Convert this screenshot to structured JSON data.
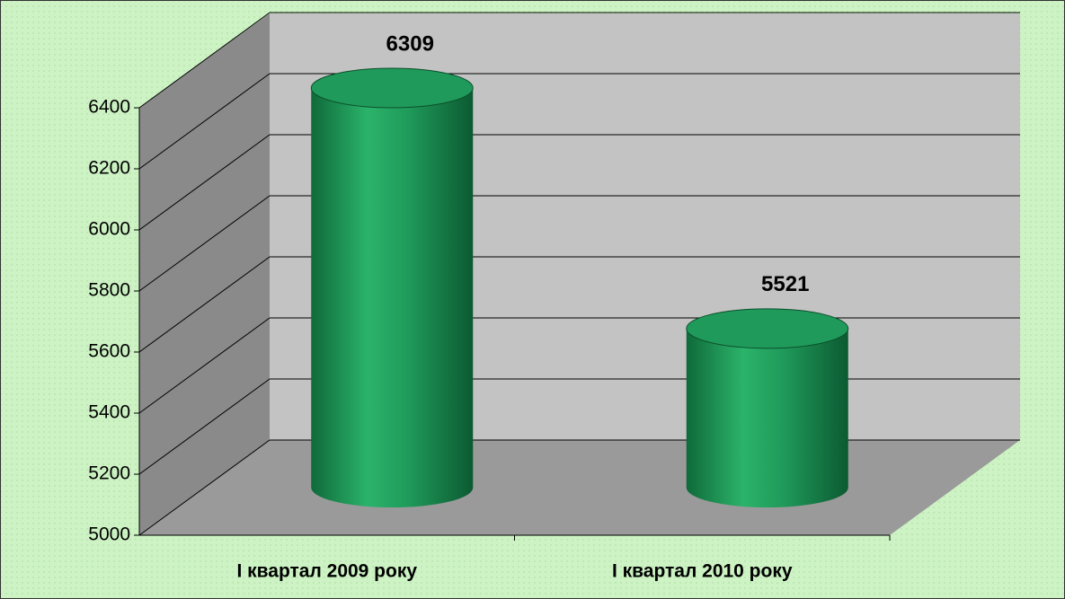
{
  "chart_data": {
    "type": "cylinder",
    "categories": [
      "І квартал 2009 року",
      "І квартал 2010 року"
    ],
    "values": [
      6309,
      5521
    ],
    "color": "#1f9a5a",
    "ylim": [
      5000,
      6400
    ],
    "yticks": [
      5000,
      5200,
      5400,
      5600,
      5800,
      6000,
      6200,
      6400
    ],
    "grid": true
  }
}
